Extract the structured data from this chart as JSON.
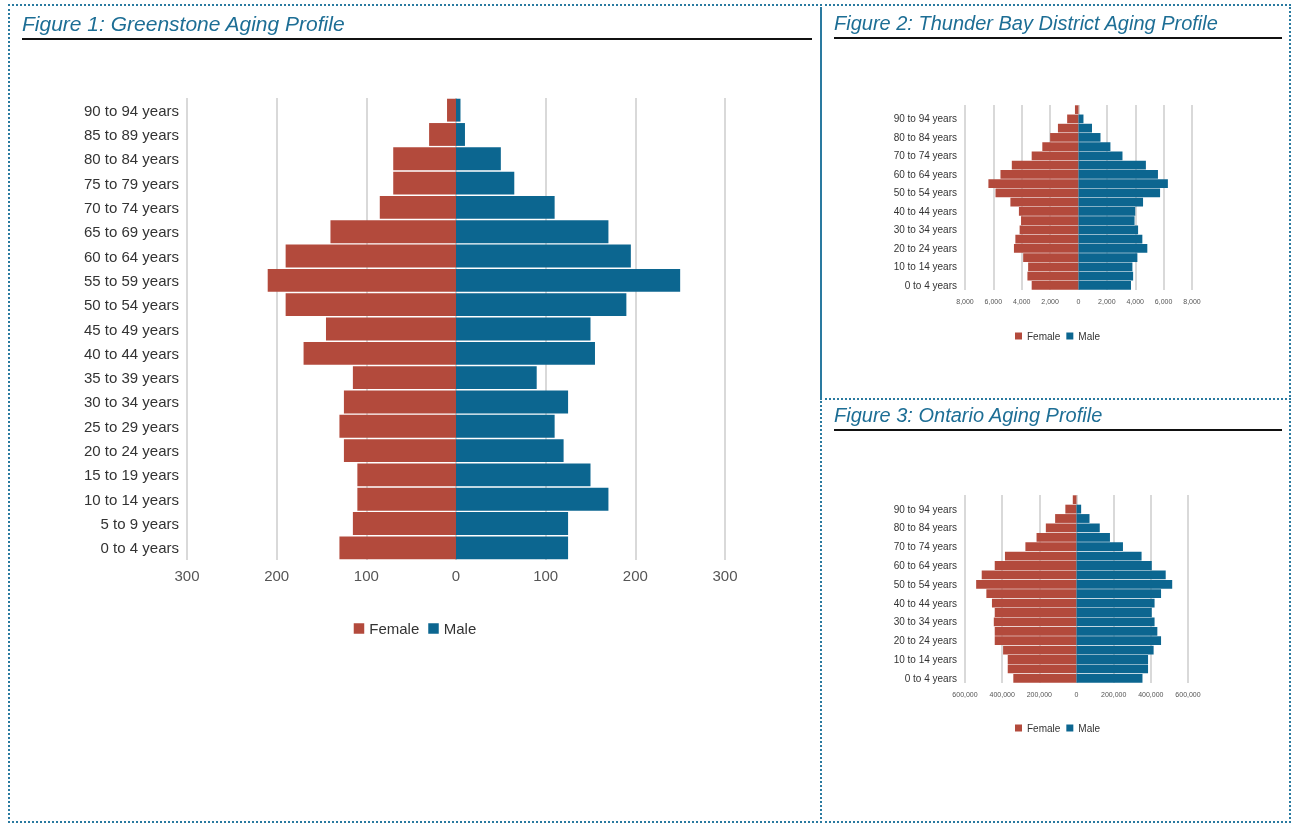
{
  "chart_data": [
    {
      "type": "bar",
      "orientation": "horizontal",
      "title": "Figure 1: Greenstone Aging Profile",
      "categories": [
        "90 to 94 years",
        "85 to 89 years",
        "80 to 84 years",
        "75 to 79 years",
        "70 to 74 years",
        "65 to 69 years",
        "60 to 64 years",
        "55 to 59 years",
        "50 to 54 years",
        "45 to 49 years",
        "40 to 44 years",
        "35 to 39 years",
        "30 to 34 years",
        "25 to 29 years",
        "20 to 24 years",
        "15 to 19 years",
        "10 to 14 years",
        "5 to 9 years",
        "0 to 4 years"
      ],
      "series": [
        {
          "name": "Female",
          "color": "#b34a3c",
          "values": [
            -10,
            -30,
            -70,
            -70,
            -85,
            -140,
            -190,
            -210,
            -190,
            -145,
            -170,
            -115,
            -125,
            -130,
            -125,
            -110,
            -110,
            -115,
            -130
          ]
        },
        {
          "name": "Male",
          "color": "#0c6690",
          "values": [
            5,
            10,
            50,
            65,
            110,
            170,
            195,
            250,
            190,
            150,
            155,
            90,
            125,
            110,
            120,
            150,
            170,
            125,
            125
          ]
        }
      ],
      "stacked": true,
      "xlim": [
        -300,
        300
      ],
      "xticks": [
        {
          "value": -300,
          "label": "300"
        },
        {
          "value": -200,
          "label": "200"
        },
        {
          "value": -100,
          "label": "100"
        },
        0,
        100,
        200,
        300
      ],
      "grid": "x",
      "legend": "bottom"
    },
    {
      "type": "bar",
      "orientation": "horizontal",
      "title": "Figure 2: Thunder Bay District Aging Profile",
      "categories": [
        null,
        "90 to 94 years",
        null,
        "80 to 84 years",
        null,
        "70 to 74 years",
        null,
        "60 to 64 years",
        null,
        "50 to 54 years",
        null,
        "40 to 44 years",
        null,
        "30 to 34 years",
        null,
        "20 to 24 years",
        null,
        "10 to 14 years",
        null,
        "0 to 4 years"
      ],
      "series": [
        {
          "name": "Female",
          "color": "#b34a3c",
          "values": [
            -250,
            -800,
            -1450,
            -2000,
            -2550,
            -3300,
            -4700,
            -5500,
            -6350,
            -5850,
            -4800,
            -4200,
            -4050,
            -4150,
            -4450,
            -4550,
            -3900,
            -3550,
            -3600,
            -3300
          ]
        },
        {
          "name": "Male",
          "color": "#0c6690",
          "values": [
            null,
            350,
            950,
            1550,
            2250,
            3100,
            4750,
            5600,
            6300,
            5750,
            4550,
            4000,
            3950,
            4200,
            4500,
            4850,
            4150,
            3800,
            3850,
            3700
          ]
        }
      ],
      "stacked": true,
      "xlim": [
        -8000,
        8000
      ],
      "xticks": [
        {
          "value": -8000,
          "label": "8,000"
        },
        {
          "value": -6000,
          "label": "6,000"
        },
        {
          "value": -4000,
          "label": "4,000"
        },
        {
          "value": -2000,
          "label": "2,000"
        },
        0,
        {
          "value": 2000,
          "label": "2,000"
        },
        {
          "value": 4000,
          "label": "4,000"
        },
        {
          "value": 6000,
          "label": "6,000"
        },
        {
          "value": 8000,
          "label": "8,000"
        }
      ],
      "grid": "x",
      "legend": "bottom"
    },
    {
      "type": "bar",
      "orientation": "horizontal",
      "title": "Figure 3: Ontario Aging Profile",
      "categories": [
        null,
        "90 to 94 years",
        null,
        "80 to 84 years",
        null,
        "70 to 74 years",
        null,
        "60 to 64 years",
        null,
        "50 to 54 years",
        null,
        "40 to 44 years",
        null,
        "30 to 34 years",
        null,
        "20 to 24 years",
        null,
        "10 to 14 years",
        null,
        "0 to 4 years"
      ],
      "series": [
        {
          "name": "Female",
          "color": "#b34a3c",
          "values": [
            -20000,
            -60000,
            -115000,
            -165000,
            -215000,
            -275000,
            -385000,
            -440000,
            -510000,
            -540000,
            -485000,
            -455000,
            -440000,
            -445000,
            -440000,
            -440000,
            -395000,
            -370000,
            -370000,
            -340000
          ]
        },
        {
          "name": "Male",
          "color": "#0c6690",
          "values": [
            null,
            25000,
            70000,
            125000,
            180000,
            250000,
            350000,
            405000,
            480000,
            515000,
            455000,
            420000,
            405000,
            420000,
            435000,
            455000,
            415000,
            385000,
            385000,
            355000
          ]
        }
      ],
      "stacked": true,
      "xlim": [
        -600000,
        600000
      ],
      "xticks": [
        {
          "value": -600000,
          "label": "600,000"
        },
        {
          "value": -400000,
          "label": "400,000"
        },
        {
          "value": -200000,
          "label": "200,000"
        },
        0,
        {
          "value": 200000,
          "label": "200,000"
        },
        {
          "value": 400000,
          "label": "400,000"
        },
        {
          "value": 600000,
          "label": "600,000"
        }
      ],
      "grid": "x",
      "legend": "bottom"
    }
  ]
}
